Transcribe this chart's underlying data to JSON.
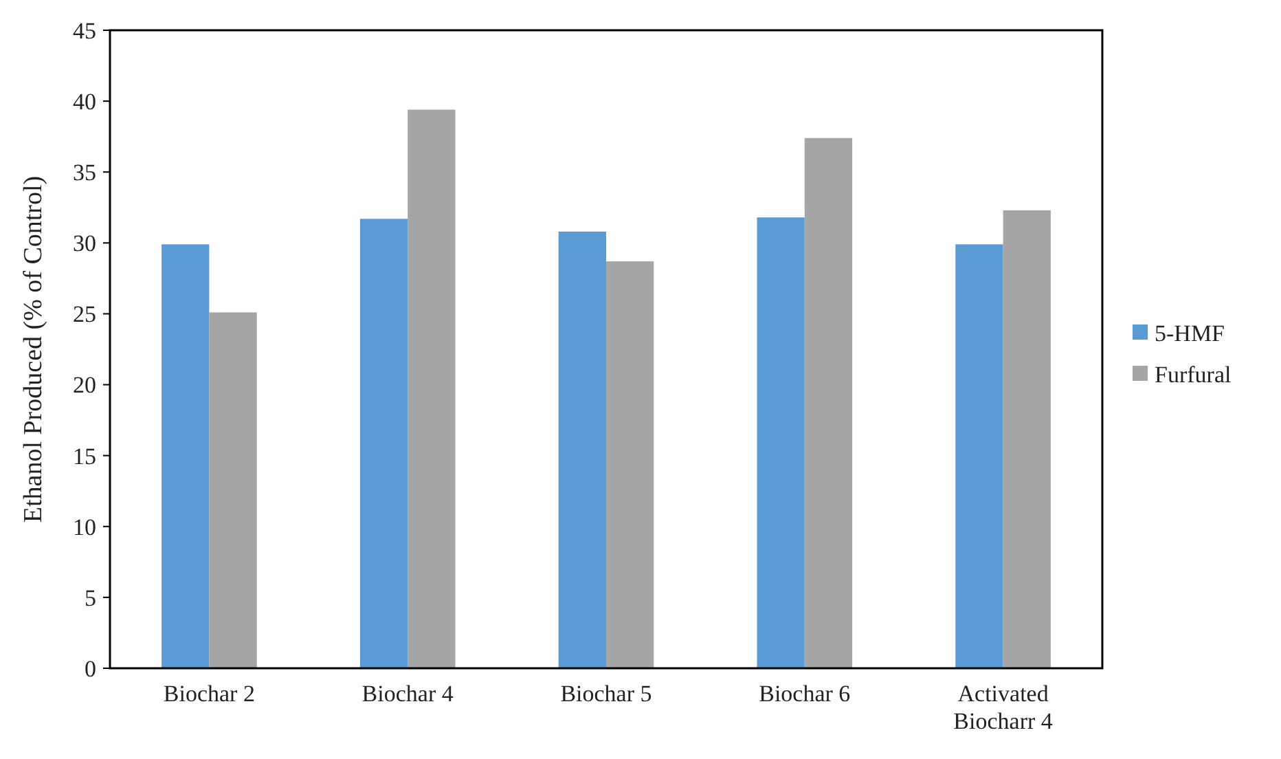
{
  "chart_data": {
    "type": "bar",
    "ylabel": "Ethanol Produced (% of Control)",
    "categories": [
      "Biochar 2",
      "Biochar 4",
      "Biochar 5",
      "Biochar 6",
      "Activated Biocharr 4"
    ],
    "series": [
      {
        "name": "5-HMF",
        "color": "#5b9bd5",
        "values": [
          29.9,
          31.7,
          30.8,
          31.8,
          29.9
        ]
      },
      {
        "name": "Furfural",
        "color": "#a5a5a5",
        "values": [
          25.1,
          39.4,
          28.7,
          37.4,
          32.3
        ]
      }
    ],
    "ylim": [
      0,
      45
    ],
    "yticks": [
      0,
      5,
      10,
      15,
      20,
      25,
      30,
      35,
      40,
      45
    ],
    "grid": false,
    "legend": "right"
  }
}
